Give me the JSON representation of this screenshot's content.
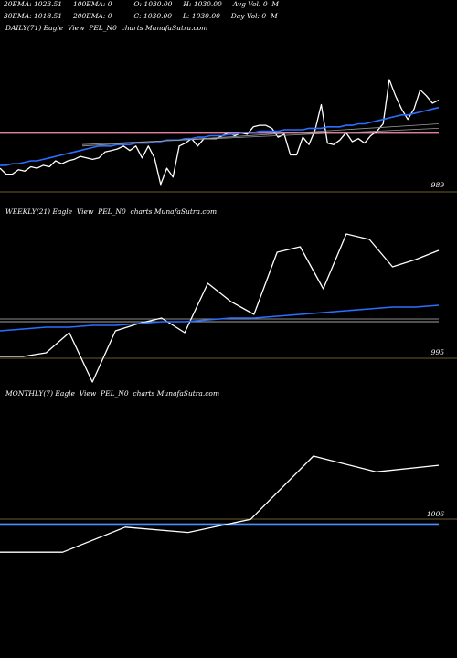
{
  "header": {
    "line1": "20EMA: 1023.51     100EMA: 0          O: 1030.00     H: 1030.00     Avg Vol: 0  M",
    "line2": "30EMA: 1018.51     200EMA: 0          C: 1030.00     L: 1030.00     Day Vol: 0  M"
  },
  "colors": {
    "price": "#ffffff",
    "ema": "#2a6fff",
    "ref_pink": "#ff8fb0",
    "ref_blue": "#4b8fff",
    "sma_gray": "#9a9a9a",
    "separator": "#6b5a2a"
  },
  "chart_data": [
    {
      "type": "line",
      "title": "DAILY(71) Eagle  View  PEL_N0  charts MunafaSutra.com",
      "price_label": "989",
      "ylim": [
        985,
        1090
      ],
      "series": [
        {
          "role": "price",
          "values": [
            1001,
            997,
            997,
            1000,
            999,
            1002,
            1001,
            1003,
            1002,
            1006,
            1004,
            1006,
            1007,
            1009,
            1008,
            1007,
            1008,
            1012,
            1013,
            1014,
            1016,
            1013,
            1016,
            1008,
            1016,
            1008,
            990,
            1001,
            995,
            1016,
            1018,
            1021,
            1016,
            1021,
            1021,
            1021,
            1023,
            1025,
            1023,
            1025,
            1024,
            1029,
            1030,
            1030,
            1028,
            1022,
            1024,
            1010,
            1010,
            1022,
            1017,
            1027,
            1044,
            1018,
            1017,
            1020,
            1025,
            1019,
            1021,
            1018,
            1023,
            1026,
            1031,
            1061,
            1050,
            1041,
            1034,
            1041,
            1054,
            1050,
            1045,
            1047
          ]
        },
        {
          "role": "ema",
          "values": [
            1003,
            1003,
            1004,
            1004,
            1005,
            1006,
            1006,
            1007,
            1008,
            1009,
            1010,
            1011,
            1012,
            1013,
            1014,
            1015,
            1016,
            1016,
            1016,
            1017,
            1017,
            1017,
            1018,
            1018,
            1018,
            1019,
            1019,
            1020,
            1020,
            1020,
            1021,
            1021,
            1022,
            1022,
            1023,
            1023,
            1023,
            1024,
            1024,
            1025,
            1025,
            1025,
            1026,
            1026,
            1026,
            1026,
            1027,
            1027,
            1027,
            1027,
            1028,
            1028,
            1028,
            1029,
            1029,
            1029,
            1030,
            1030,
            1031,
            1031,
            1032,
            1033,
            1034,
            1035,
            1036,
            1037,
            1037,
            1038,
            1039,
            1040,
            1041,
            1042
          ]
        },
        {
          "role": "sma",
          "values": [
            1016,
            1031
          ]
        },
        {
          "role": "sma2",
          "values": [
            1017,
            1028
          ]
        }
      ],
      "ref_line": 1025
    },
    {
      "type": "line",
      "title": "WEEKLY(21) Eagle  View  PEL_N0  charts MunafaSutra.com",
      "price_label": "995",
      "ylim": [
        990,
        1080
      ],
      "series": [
        {
          "role": "price",
          "values": [
            1005,
            1005,
            1007,
            1018,
            991,
            1019,
            1023,
            1026,
            1018,
            1045,
            1035,
            1028,
            1062,
            1065,
            1042,
            1072,
            1069,
            1054,
            1058,
            1063
          ]
        },
        {
          "role": "ema",
          "values": [
            1019,
            1020,
            1021,
            1021,
            1022,
            1022,
            1023,
            1024,
            1024,
            1025,
            1026,
            1026,
            1027,
            1028,
            1029,
            1030,
            1031,
            1032,
            1032,
            1033
          ]
        }
      ],
      "ref_line": 1024
    },
    {
      "type": "line",
      "title": "MONTHLY(7) Eagle  View  PEL_N0  charts MunafaSutra.com",
      "price_label": "1006",
      "ylim": [
        985,
        1110
      ],
      "series": [
        {
          "role": "price",
          "values": [
            996,
            996,
            1015,
            1011,
            1021,
            1069,
            1057,
            1062
          ]
        }
      ],
      "ref_line": 1017
    }
  ]
}
